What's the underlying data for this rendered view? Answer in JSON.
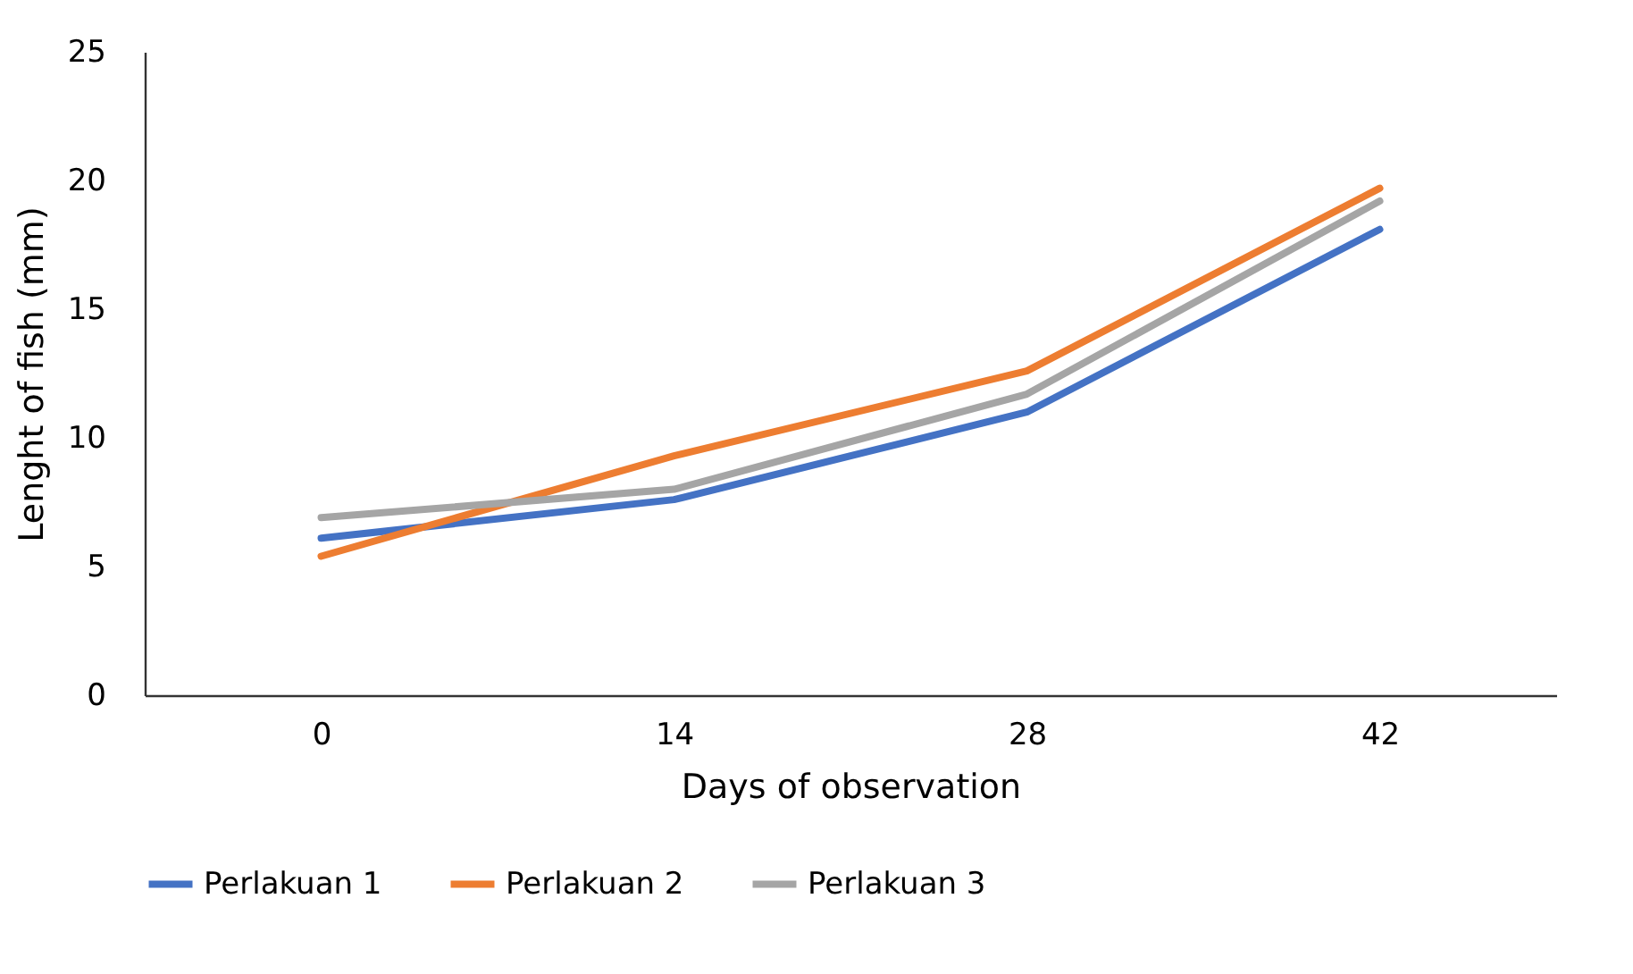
{
  "chart_data": {
    "type": "line",
    "xlabel": "Days of observation",
    "ylabel": "Lenght of fish (mm)",
    "categories": [
      "0",
      "14",
      "28",
      "42"
    ],
    "series": [
      {
        "name": "Perlakuan 1",
        "color": "#4472c4",
        "values": [
          6.1,
          7.6,
          11.0,
          18.1
        ]
      },
      {
        "name": "Perlakuan 2",
        "color": "#ed7d31",
        "values": [
          5.4,
          9.3,
          12.6,
          19.7
        ]
      },
      {
        "name": "Perlakuan 3",
        "color": "#a5a5a5",
        "values": [
          6.9,
          8.0,
          11.7,
          19.2
        ]
      }
    ],
    "ylim": [
      0,
      25
    ],
    "yticks": [
      0,
      5,
      10,
      15,
      20,
      25
    ],
    "grid": false,
    "legend": "bottom",
    "marker": "none"
  }
}
